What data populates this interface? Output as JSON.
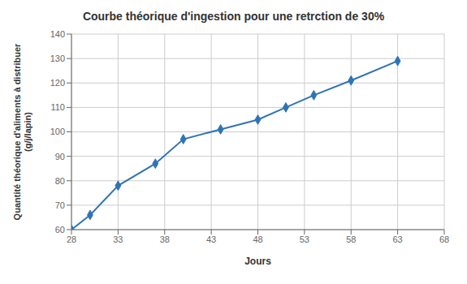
{
  "chart_data": {
    "type": "line",
    "title": "Courbe théorique d'ingestion pour une retrction de 30%",
    "xlabel": "Jours",
    "ylabel": "Quantité théorique d'aliments à distribuer\n(g/j/lapin)",
    "x": [
      28,
      30,
      33,
      37,
      40,
      44,
      48,
      51,
      54,
      58,
      63
    ],
    "values": [
      60,
      66,
      78,
      87,
      97,
      101,
      105,
      110,
      115,
      121,
      129
    ],
    "color": "#2E74B5",
    "marker": "diamond",
    "xlim": [
      28,
      68
    ],
    "ylim": [
      60,
      140
    ],
    "xticks": [
      28,
      33,
      38,
      43,
      48,
      53,
      58,
      63,
      68
    ],
    "yticks": [
      60,
      70,
      80,
      90,
      100,
      110,
      120,
      130,
      140
    ],
    "grid": true
  }
}
